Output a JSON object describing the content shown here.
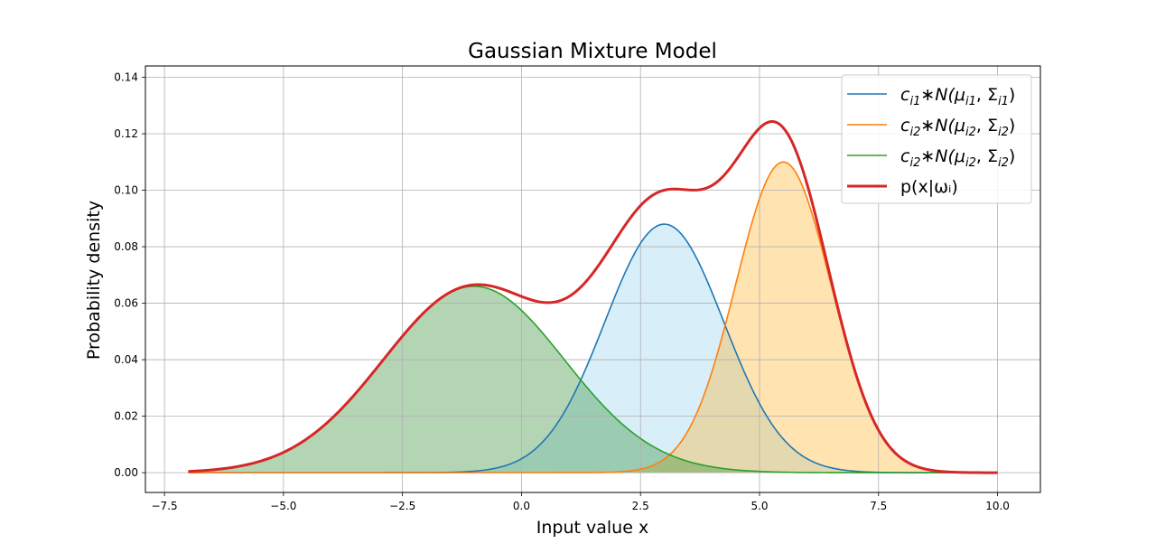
{
  "chart_data": {
    "type": "line",
    "title": "Gaussian Mixture Model",
    "xlabel": "Input value x",
    "ylabel": "Probability density",
    "xlim": [
      -7.9,
      10.9
    ],
    "ylim": [
      -0.007,
      0.144
    ],
    "xticks": [
      -7.5,
      -5.0,
      -2.5,
      0.0,
      2.5,
      5.0,
      7.5,
      10.0
    ],
    "xtick_labels": [
      "−7.5",
      "−5.0",
      "−2.5",
      "0.0",
      "2.5",
      "5.0",
      "7.5",
      "10.0"
    ],
    "yticks": [
      0.0,
      0.02,
      0.04,
      0.06,
      0.08,
      0.1,
      0.12,
      0.14
    ],
    "ytick_labels": [
      "0.00",
      "0.02",
      "0.04",
      "0.06",
      "0.08",
      "0.10",
      "0.12",
      "0.14"
    ],
    "grid": true,
    "legend_position": "top-right",
    "x_range": [
      -7,
      10
    ],
    "series": [
      {
        "mean": 3.0,
        "std": 1.25,
        "peak": 0.088,
        "color": "#1f77b4",
        "fill": "#87ceeb",
        "fill_opacity": 0.32
      },
      {
        "mean": 5.5,
        "std": 1.0,
        "peak": 0.11,
        "color": "#ff7f0e",
        "fill": "#ffa500",
        "fill_opacity": 0.3
      },
      {
        "mean": -1.0,
        "std": 1.9,
        "peak": 0.066,
        "color": "#2ca02c",
        "fill": "#2e8b2e",
        "fill_opacity": 0.36
      }
    ],
    "total": {
      "color": "#d62728"
    },
    "legend": [
      {
        "base": "c",
        "sub1": "i1",
        "mid1": "∗N(μ",
        "sub2": "i1",
        "mid2": ", Σ",
        "sub3": "i1",
        "end": ")",
        "color": "#1f77b4"
      },
      {
        "base": "c",
        "sub1": "i2",
        "mid1": "∗N(μ",
        "sub2": "i2",
        "mid2": ", Σ",
        "sub3": "i2",
        "end": ")",
        "color": "#ff7f0e"
      },
      {
        "base": "c",
        "sub1": "i2",
        "mid1": "∗N(μ",
        "sub2": "i2",
        "mid2": ", Σ",
        "sub3": "i2",
        "end": ")",
        "color": "#2ca02c"
      },
      {
        "text": "p(x|ωᵢ)",
        "color": "#d62728"
      }
    ]
  }
}
